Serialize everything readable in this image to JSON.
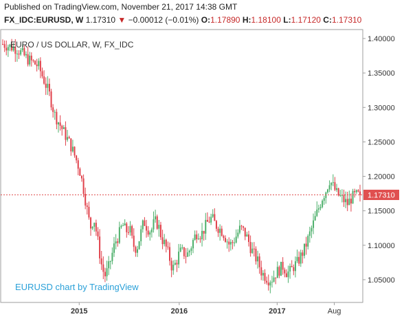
{
  "header": {
    "published": "Published on TradingView.com, November 21, 2017 14:38 GMT",
    "symbol": "FX_IDC:EURUSD, W",
    "last": "1.17310",
    "change_arrow": "▼",
    "change": "−0.00012 (−0.01%)",
    "open_label": "O:",
    "open": "1.17890",
    "high_label": "H:",
    "high": "1.18100",
    "low_label": "L:",
    "low": "1.17120",
    "close_label": "C:",
    "close": "1.17310"
  },
  "colors": {
    "up": "#4caf6a",
    "down": "#e0404a",
    "brand": "#2aa0d8",
    "price_line": "#e05050"
  },
  "chart_data": {
    "type": "candlestick",
    "title": "EURO / US DOLLAR, W, FX_IDC",
    "watermark": "EURUSD chart by TradingView",
    "ylim": [
      1.02,
      1.41
    ],
    "y_ticks": [
      "1.40000",
      "1.35000",
      "1.30000",
      "1.25000",
      "1.20000",
      "1.15000",
      "1.10000",
      "1.05000"
    ],
    "x_ticks": [
      {
        "label": "2015",
        "bold": true,
        "pos": 0.214
      },
      {
        "label": "2016",
        "bold": true,
        "pos": 0.494
      },
      {
        "label": "2017",
        "bold": true,
        "pos": 0.768
      },
      {
        "label": "Aug",
        "bold": false,
        "pos": 0.928
      }
    ],
    "current_price": 1.1731,
    "current_price_label": "1.17310",
    "close_path": [
      [
        0.0,
        1.392
      ],
      [
        0.04,
        1.385
      ],
      [
        0.07,
        1.37
      ],
      [
        0.1,
        1.36
      ],
      [
        0.13,
        1.32
      ],
      [
        0.145,
        1.29
      ],
      [
        0.16,
        1.275
      ],
      [
        0.175,
        1.26
      ],
      [
        0.19,
        1.245
      ],
      [
        0.205,
        1.225
      ],
      [
        0.215,
        1.21
      ],
      [
        0.225,
        1.185
      ],
      [
        0.235,
        1.155
      ],
      [
        0.245,
        1.125
      ],
      [
        0.255,
        1.14
      ],
      [
        0.265,
        1.11
      ],
      [
        0.275,
        1.075
      ],
      [
        0.285,
        1.055
      ],
      [
        0.295,
        1.065
      ],
      [
        0.305,
        1.085
      ],
      [
        0.315,
        1.105
      ],
      [
        0.325,
        1.115
      ],
      [
        0.335,
        1.13
      ],
      [
        0.345,
        1.12
      ],
      [
        0.355,
        1.125
      ],
      [
        0.365,
        1.1
      ],
      [
        0.375,
        1.095
      ],
      [
        0.385,
        1.115
      ],
      [
        0.395,
        1.135
      ],
      [
        0.405,
        1.125
      ],
      [
        0.415,
        1.12
      ],
      [
        0.425,
        1.135
      ],
      [
        0.435,
        1.13
      ],
      [
        0.445,
        1.11
      ],
      [
        0.455,
        1.1
      ],
      [
        0.465,
        1.085
      ],
      [
        0.475,
        1.065
      ],
      [
        0.485,
        1.075
      ],
      [
        0.495,
        1.09
      ],
      [
        0.505,
        1.09
      ],
      [
        0.515,
        1.085
      ],
      [
        0.525,
        1.095
      ],
      [
        0.535,
        1.11
      ],
      [
        0.545,
        1.12
      ],
      [
        0.555,
        1.115
      ],
      [
        0.565,
        1.125
      ],
      [
        0.575,
        1.135
      ],
      [
        0.585,
        1.14
      ],
      [
        0.595,
        1.13
      ],
      [
        0.605,
        1.125
      ],
      [
        0.615,
        1.12
      ],
      [
        0.625,
        1.11
      ],
      [
        0.635,
        1.1
      ],
      [
        0.645,
        1.105
      ],
      [
        0.655,
        1.115
      ],
      [
        0.665,
        1.125
      ],
      [
        0.675,
        1.12
      ],
      [
        0.685,
        1.11
      ],
      [
        0.695,
        1.095
      ],
      [
        0.705,
        1.085
      ],
      [
        0.715,
        1.075
      ],
      [
        0.725,
        1.06
      ],
      [
        0.735,
        1.055
      ],
      [
        0.745,
        1.05
      ],
      [
        0.755,
        1.052
      ],
      [
        0.765,
        1.06
      ],
      [
        0.775,
        1.065
      ],
      [
        0.785,
        1.07
      ],
      [
        0.795,
        1.06
      ],
      [
        0.805,
        1.062
      ],
      [
        0.815,
        1.07
      ],
      [
        0.825,
        1.075
      ],
      [
        0.835,
        1.085
      ],
      [
        0.845,
        1.095
      ],
      [
        0.855,
        1.11
      ],
      [
        0.865,
        1.125
      ],
      [
        0.875,
        1.14
      ],
      [
        0.885,
        1.155
      ],
      [
        0.895,
        1.17
      ],
      [
        0.905,
        1.18
      ],
      [
        0.915,
        1.195
      ],
      [
        0.925,
        1.185
      ],
      [
        0.935,
        1.175
      ],
      [
        0.945,
        1.17
      ],
      [
        0.955,
        1.165
      ],
      [
        0.965,
        1.16
      ],
      [
        0.975,
        1.168
      ],
      [
        0.985,
        1.172
      ],
      [
        1.0,
        1.173
      ]
    ]
  }
}
